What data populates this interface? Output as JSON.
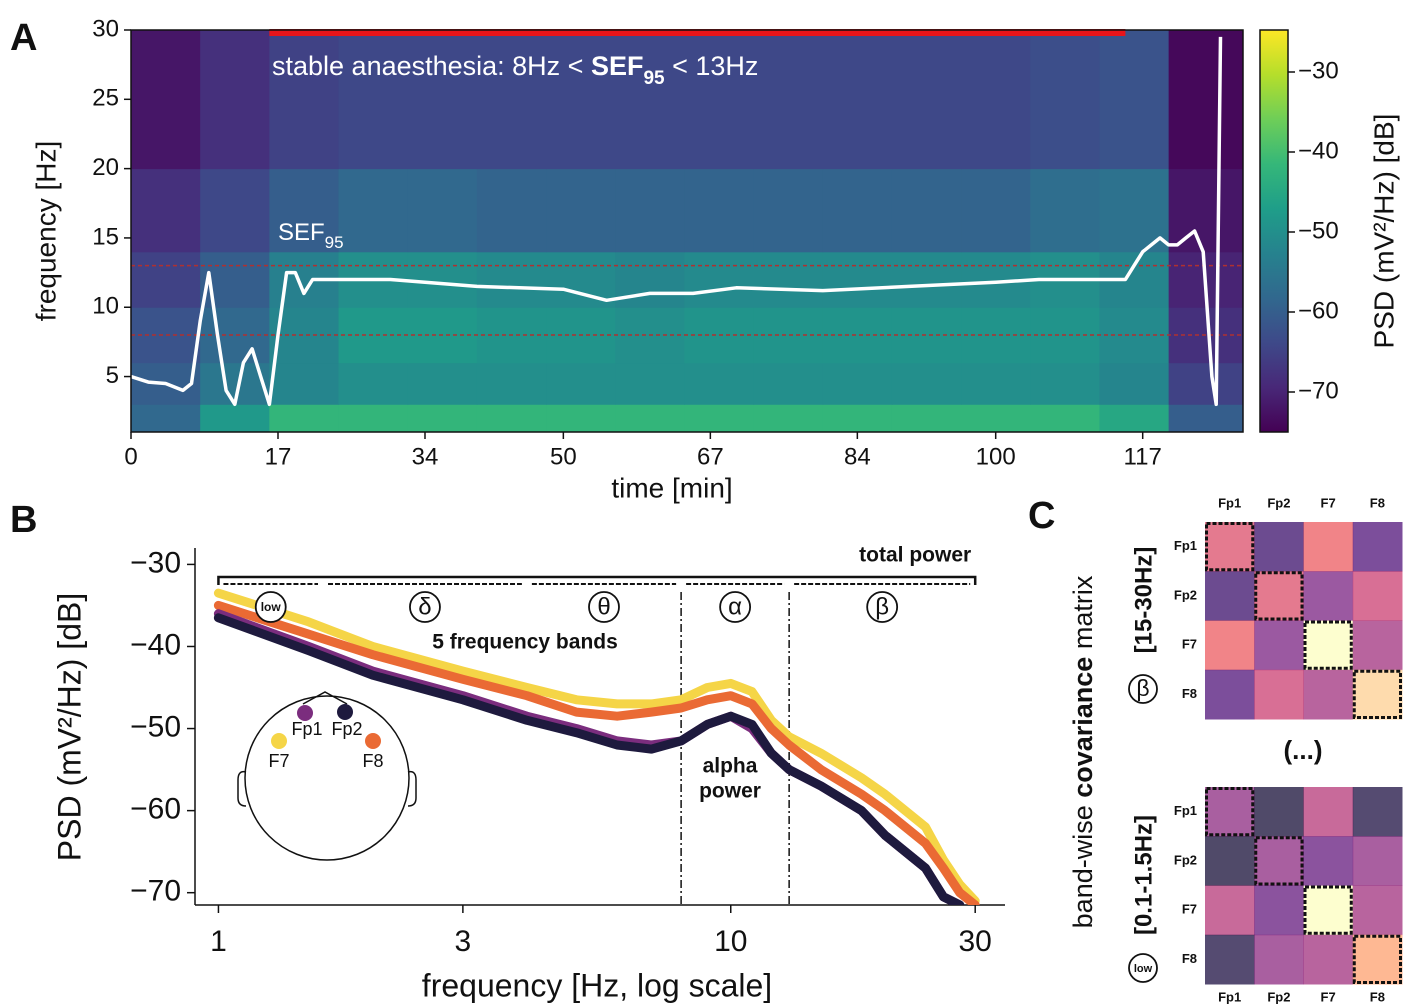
{
  "chart_data": [
    {
      "panel": "A",
      "type": "heatmap",
      "xlabel": "time [min]",
      "ylabel": "frequency [Hz]",
      "xlim": [
        0,
        128.6
      ],
      "xticks": [
        0,
        17,
        34,
        50,
        67,
        84,
        100,
        117
      ],
      "ylim": [
        1,
        30
      ],
      "yticks": [
        5,
        10,
        15,
        20,
        25,
        30
      ],
      "time_edges": [
        0,
        8,
        16,
        24,
        32,
        40,
        48,
        56,
        64,
        72,
        80,
        88,
        96,
        104,
        112,
        120,
        128.6
      ],
      "freq_edges": [
        1,
        3,
        6,
        10,
        14,
        20,
        30
      ],
      "z": [
        [
          -58,
          -48,
          -42,
          -42,
          -42,
          -42,
          -42,
          -42,
          -42,
          -42,
          -42,
          -42,
          -42,
          -42,
          -45,
          -60
        ],
        [
          -60,
          -55,
          -52,
          -50,
          -50,
          -50,
          -50,
          -50,
          -50,
          -50,
          -50,
          -50,
          -50,
          -50,
          -52,
          -65
        ],
        [
          -62,
          -58,
          -52,
          -48,
          -48,
          -49,
          -49,
          -50,
          -49,
          -49,
          -49,
          -49,
          -49,
          -49,
          -51,
          -68
        ],
        [
          -65,
          -60,
          -53,
          -50,
          -50,
          -51,
          -51,
          -52,
          -51,
          -51,
          -51,
          -51,
          -51,
          -50,
          -52,
          -70
        ],
        [
          -68,
          -64,
          -60,
          -58,
          -58,
          -59,
          -59,
          -59,
          -59,
          -59,
          -59,
          -59,
          -59,
          -57,
          -56,
          -72
        ],
        [
          -72,
          -68,
          -65,
          -64,
          -64,
          -64,
          -64,
          -64,
          -64,
          -64,
          -64,
          -64,
          -64,
          -63,
          -62,
          -74
        ]
      ],
      "colormap": "viridis",
      "clim": [
        -75,
        -24.75
      ],
      "colorbar_label": "PSD (mV²/Hz) [dB]",
      "colorbar_ticks": [
        {
          "value": -30,
          "label": "−30"
        },
        {
          "value": -40,
          "label": "−40"
        },
        {
          "value": -50,
          "label": "−50"
        },
        {
          "value": -60,
          "label": "−60"
        },
        {
          "value": -70,
          "label": "−70"
        }
      ],
      "annotation_parts": [
        "stable anaesthesia: 8Hz < ",
        "SEF",
        "95",
        " < 13Hz"
      ],
      "stable_span": [
        16,
        115
      ],
      "stable_color": "#e8141a",
      "hlines": [
        8,
        13
      ],
      "hline_color": "#b03030",
      "sef": {
        "name_parts": [
          "SEF",
          "95"
        ],
        "color": "#ffffff",
        "x": [
          0,
          2,
          4,
          6,
          7,
          8,
          9,
          10,
          11,
          12,
          13,
          14,
          15,
          16,
          17,
          18,
          19,
          20,
          21,
          25,
          30,
          40,
          50,
          55,
          60,
          65,
          70,
          80,
          90,
          100,
          105,
          110,
          113,
          115,
          116,
          117,
          118,
          119,
          120,
          121,
          122,
          123,
          124,
          125,
          125.5,
          126
        ],
        "values": [
          5,
          4.6,
          4.5,
          4,
          4.5,
          9,
          12.5,
          8,
          4,
          3,
          6,
          7,
          5,
          3,
          8,
          12.5,
          12.5,
          11,
          12,
          12,
          12,
          11.5,
          11.3,
          10.5,
          11,
          11,
          11.4,
          11.2,
          11.5,
          11.8,
          12,
          12,
          12,
          12,
          13,
          14,
          14.5,
          15,
          14.5,
          14.5,
          15,
          15.5,
          14,
          5,
          3,
          29.5
        ]
      }
    },
    {
      "panel": "B",
      "type": "line",
      "xlabel": "frequency [Hz, log scale]",
      "ylabel": "PSD (mV²/Hz) [dB]",
      "xscale": "log",
      "xlim": [
        0.9,
        34.3
      ],
      "xticks": [
        1,
        3,
        10,
        30
      ],
      "ylim": [
        -71.5,
        -28
      ],
      "yticks": [
        {
          "value": -30,
          "label": "−30"
        },
        {
          "value": -40,
          "label": "−40"
        },
        {
          "value": -50,
          "label": "−50"
        },
        {
          "value": -60,
          "label": "−60"
        },
        {
          "value": -70,
          "label": "−70"
        }
      ],
      "x": [
        1,
        1.5,
        2,
        3,
        4,
        5,
        6,
        7,
        8,
        9,
        10,
        11,
        12,
        13,
        15,
        18,
        20,
        24,
        26,
        28,
        30
      ],
      "series": [
        {
          "name": "F7",
          "color": "#f5d547",
          "values": [
            -33.5,
            -37,
            -40,
            -43,
            -45,
            -46.5,
            -47,
            -47,
            -46.5,
            -45,
            -44.5,
            -45.5,
            -49,
            -51,
            -53,
            -56,
            -58,
            -62,
            -66,
            -69,
            -71
          ]
        },
        {
          "name": "F8",
          "color": "#ea6a34",
          "values": [
            -35,
            -38.5,
            -41,
            -44,
            -46,
            -48,
            -48.5,
            -48,
            -47.5,
            -46.5,
            -46,
            -47,
            -50,
            -52,
            -55,
            -58,
            -60,
            -64,
            -67,
            -70,
            -71.5
          ]
        },
        {
          "name": "Fp1",
          "color": "#7b2d7e",
          "values": [
            -36,
            -40,
            -43,
            -46,
            -48.5,
            -50,
            -51.5,
            -52,
            -51.5,
            -49.5,
            -48.5,
            -50,
            -53,
            -55,
            -57,
            -60,
            -63,
            -67,
            -70.5,
            -71.5,
            null
          ]
        },
        {
          "name": "Fp2",
          "color": "#1e1a3e",
          "values": [
            -36.5,
            -40.5,
            -43.5,
            -46.5,
            -49,
            -50.5,
            -52,
            -52.5,
            -51.5,
            -49.5,
            -48.5,
            -49.5,
            -53,
            -55,
            -57,
            -60,
            -63,
            -67,
            -70.5,
            -71.5,
            null
          ]
        }
      ],
      "total_power": {
        "label": "total power",
        "range": [
          1,
          30
        ]
      },
      "bands": [
        {
          "symbol": "low",
          "range": [
            1,
            1.6
          ]
        },
        {
          "symbol": "δ",
          "range": [
            1.6,
            4
          ]
        },
        {
          "symbol": "θ",
          "range": [
            4,
            8
          ]
        },
        {
          "symbol": "α",
          "range": [
            8,
            13
          ]
        },
        {
          "symbol": "β",
          "range": [
            13,
            30
          ]
        }
      ],
      "bands_label": "5 frequency bands",
      "vlines": [
        8,
        13
      ],
      "alpha_label_lines": [
        "alpha",
        "power"
      ]
    },
    {
      "panel": "C",
      "type": "matrix",
      "ylabel_parts": [
        "band-wise ",
        "covariance",
        " matrix"
      ],
      "channels": [
        "Fp1",
        "Fp2",
        "F7",
        "F8"
      ],
      "colormap": "magma",
      "clim": [
        0,
        1
      ],
      "ellipsis": "(...)",
      "matrices": [
        {
          "band_symbol": "β",
          "band_range": "[15-30Hz]",
          "values": [
            [
              0.6,
              0.2,
              0.65,
              0.25
            ],
            [
              0.2,
              0.6,
              0.35,
              0.55
            ],
            [
              0.65,
              0.35,
              1.0,
              0.45
            ],
            [
              0.25,
              0.55,
              0.45,
              0.9
            ]
          ]
        },
        {
          "band_symbol": "low",
          "band_range": "[0.1-1.5Hz]",
          "values": [
            [
              0.4,
              0.1,
              0.5,
              0.12
            ],
            [
              0.1,
              0.4,
              0.3,
              0.4
            ],
            [
              0.5,
              0.3,
              1.0,
              0.45
            ],
            [
              0.12,
              0.4,
              0.45,
              0.8
            ]
          ]
        }
      ]
    }
  ]
}
